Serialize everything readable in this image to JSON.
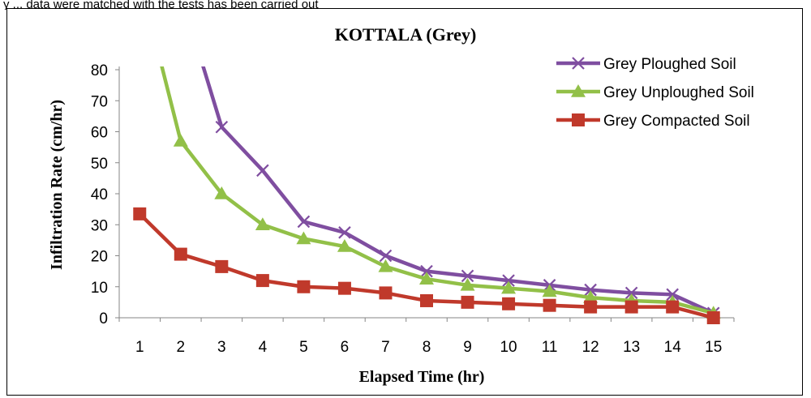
{
  "top_text": "y ... data were matched with the tests has been carried out",
  "chart_data": {
    "type": "line",
    "title": "KOTTALA (Grey)",
    "xlabel": "Elapsed Time (hr)",
    "ylabel": "Infiltration  Rate (cm/hr)",
    "x": [
      1,
      2,
      3,
      4,
      5,
      6,
      7,
      8,
      9,
      10,
      11,
      12,
      13,
      14,
      15
    ],
    "ylim": [
      0,
      80
    ],
    "yticks": [
      0,
      10,
      20,
      30,
      40,
      50,
      60,
      70,
      80
    ],
    "grid": false,
    "legend_position": "top-right",
    "series": [
      {
        "name": "Grey Ploughed Soil",
        "color": "#7F4EA0",
        "marker": "x",
        "values": [
          null,
          null,
          61.5,
          47.5,
          31,
          27.5,
          20,
          15,
          13.5,
          12,
          10.5,
          9,
          8,
          7.5,
          1.5
        ]
      },
      {
        "name": "Grey Unploughed Soil",
        "color": "#92C048",
        "marker": "triangle",
        "values": [
          null,
          57,
          40,
          30,
          25.5,
          23,
          16.5,
          12.5,
          10.5,
          9.5,
          8.5,
          6.5,
          5.5,
          5,
          1.5
        ]
      },
      {
        "name": "Grey Compacted Soil",
        "color": "#C0392B",
        "marker": "square",
        "values": [
          33.5,
          20.5,
          16.5,
          12,
          10,
          9.5,
          8,
          5.5,
          5,
          4.5,
          4,
          3.5,
          3.5,
          3.5,
          0
        ]
      }
    ],
    "offscale_start": [
      {
        "series": 0,
        "from_x": 2.5,
        "to_x": 3
      },
      {
        "series": 1,
        "from_x": 1.5,
        "to_x": 2
      }
    ]
  }
}
